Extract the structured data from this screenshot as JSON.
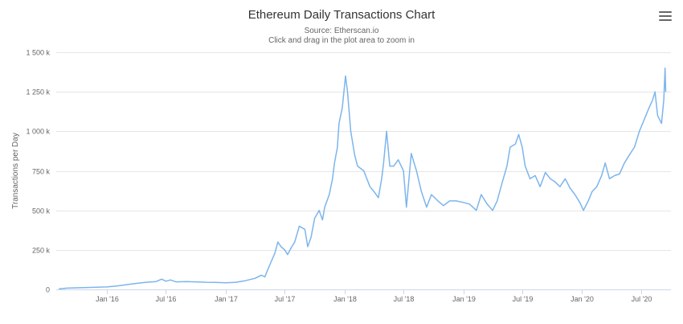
{
  "title": "Ethereum Daily Transactions Chart",
  "subtitle_source": "Source: Etherscan.io",
  "subtitle_hint": "Click and drag in the plot area to zoom in",
  "menu_icon": "hamburger-menu-icon",
  "colors": {
    "series": "#7cb5ec",
    "grid": "#e6e6e6",
    "axis_text": "#666666"
  },
  "chart_data": {
    "type": "line",
    "title": "Ethereum Daily Transactions Chart",
    "ylabel": "Transactions per Day",
    "xlabel": "",
    "ylim": [
      0,
      1500000
    ],
    "xlim": [
      "2015-07-30",
      "2020-09-30"
    ],
    "y_ticks": [
      {
        "value": 0,
        "label": "0"
      },
      {
        "value": 250000,
        "label": "250 k"
      },
      {
        "value": 500000,
        "label": "500 k"
      },
      {
        "value": 750000,
        "label": "750 k"
      },
      {
        "value": 1000000,
        "label": "1 000 k"
      },
      {
        "value": 1250000,
        "label": "1 250 k"
      },
      {
        "value": 1500000,
        "label": "1 500 k"
      }
    ],
    "x_ticks": [
      {
        "date": "2016-01-01",
        "label": "Jan '16"
      },
      {
        "date": "2016-07-01",
        "label": "Jul '16"
      },
      {
        "date": "2017-01-01",
        "label": "Jan '17"
      },
      {
        "date": "2017-07-01",
        "label": "Jul '17"
      },
      {
        "date": "2018-01-01",
        "label": "Jan '18"
      },
      {
        "date": "2018-07-01",
        "label": "Jul '18"
      },
      {
        "date": "2019-01-01",
        "label": "Jan '19"
      },
      {
        "date": "2019-07-01",
        "label": "Jul '19"
      },
      {
        "date": "2020-01-01",
        "label": "Jan '20"
      },
      {
        "date": "2020-07-01",
        "label": "Jul '20"
      }
    ],
    "grid": true,
    "legend": false,
    "series": [
      {
        "points": [
          [
            "2015-08-07",
            3000
          ],
          [
            "2015-09-01",
            8000
          ],
          [
            "2015-10-01",
            10000
          ],
          [
            "2015-11-01",
            12000
          ],
          [
            "2015-12-01",
            14000
          ],
          [
            "2016-01-01",
            16000
          ],
          [
            "2016-02-01",
            22000
          ],
          [
            "2016-03-01",
            30000
          ],
          [
            "2016-04-01",
            38000
          ],
          [
            "2016-05-01",
            45000
          ],
          [
            "2016-06-01",
            50000
          ],
          [
            "2016-06-18",
            65000
          ],
          [
            "2016-07-01",
            52000
          ],
          [
            "2016-07-15",
            60000
          ],
          [
            "2016-08-01",
            48000
          ],
          [
            "2016-09-01",
            50000
          ],
          [
            "2016-10-01",
            48000
          ],
          [
            "2016-11-01",
            45000
          ],
          [
            "2016-12-01",
            44000
          ],
          [
            "2017-01-01",
            42000
          ],
          [
            "2017-02-01",
            45000
          ],
          [
            "2017-03-01",
            55000
          ],
          [
            "2017-04-01",
            70000
          ],
          [
            "2017-04-20",
            90000
          ],
          [
            "2017-05-01",
            80000
          ],
          [
            "2017-05-15",
            150000
          ],
          [
            "2017-06-01",
            230000
          ],
          [
            "2017-06-10",
            300000
          ],
          [
            "2017-06-20",
            270000
          ],
          [
            "2017-07-01",
            250000
          ],
          [
            "2017-07-10",
            220000
          ],
          [
            "2017-07-20",
            260000
          ],
          [
            "2017-08-01",
            300000
          ],
          [
            "2017-08-15",
            400000
          ],
          [
            "2017-09-01",
            380000
          ],
          [
            "2017-09-10",
            270000
          ],
          [
            "2017-09-20",
            330000
          ],
          [
            "2017-10-01",
            450000
          ],
          [
            "2017-10-15",
            500000
          ],
          [
            "2017-10-25",
            440000
          ],
          [
            "2017-11-01",
            520000
          ],
          [
            "2017-11-15",
            600000
          ],
          [
            "2017-11-25",
            700000
          ],
          [
            "2017-12-01",
            800000
          ],
          [
            "2017-12-10",
            900000
          ],
          [
            "2017-12-15",
            1050000
          ],
          [
            "2017-12-25",
            1150000
          ],
          [
            "2018-01-04",
            1350000
          ],
          [
            "2018-01-10",
            1250000
          ],
          [
            "2018-01-20",
            1000000
          ],
          [
            "2018-02-01",
            850000
          ],
          [
            "2018-02-10",
            780000
          ],
          [
            "2018-03-01",
            750000
          ],
          [
            "2018-03-20",
            650000
          ],
          [
            "2018-04-01",
            620000
          ],
          [
            "2018-04-15",
            580000
          ],
          [
            "2018-04-25",
            700000
          ],
          [
            "2018-05-01",
            800000
          ],
          [
            "2018-05-10",
            1000000
          ],
          [
            "2018-05-20",
            780000
          ],
          [
            "2018-06-01",
            780000
          ],
          [
            "2018-06-15",
            820000
          ],
          [
            "2018-07-01",
            750000
          ],
          [
            "2018-07-10",
            520000
          ],
          [
            "2018-07-25",
            860000
          ],
          [
            "2018-08-10",
            750000
          ],
          [
            "2018-08-25",
            620000
          ],
          [
            "2018-09-10",
            520000
          ],
          [
            "2018-09-25",
            600000
          ],
          [
            "2018-10-15",
            560000
          ],
          [
            "2018-11-01",
            530000
          ],
          [
            "2018-11-20",
            560000
          ],
          [
            "2018-12-10",
            560000
          ],
          [
            "2019-01-01",
            550000
          ],
          [
            "2019-01-20",
            540000
          ],
          [
            "2019-02-10",
            500000
          ],
          [
            "2019-02-25",
            600000
          ],
          [
            "2019-03-15",
            540000
          ],
          [
            "2019-04-01",
            500000
          ],
          [
            "2019-04-15",
            560000
          ],
          [
            "2019-05-01",
            680000
          ],
          [
            "2019-05-15",
            780000
          ],
          [
            "2019-05-25",
            900000
          ],
          [
            "2019-06-10",
            920000
          ],
          [
            "2019-06-20",
            980000
          ],
          [
            "2019-07-01",
            900000
          ],
          [
            "2019-07-10",
            780000
          ],
          [
            "2019-07-25",
            700000
          ],
          [
            "2019-08-10",
            720000
          ],
          [
            "2019-08-25",
            650000
          ],
          [
            "2019-09-10",
            740000
          ],
          [
            "2019-09-25",
            700000
          ],
          [
            "2019-10-10",
            680000
          ],
          [
            "2019-10-25",
            650000
          ],
          [
            "2019-11-10",
            700000
          ],
          [
            "2019-11-25",
            640000
          ],
          [
            "2019-12-10",
            600000
          ],
          [
            "2019-12-25",
            550000
          ],
          [
            "2020-01-05",
            500000
          ],
          [
            "2020-01-20",
            560000
          ],
          [
            "2020-02-01",
            620000
          ],
          [
            "2020-02-15",
            650000
          ],
          [
            "2020-03-01",
            720000
          ],
          [
            "2020-03-12",
            800000
          ],
          [
            "2020-03-25",
            700000
          ],
          [
            "2020-04-10",
            720000
          ],
          [
            "2020-04-25",
            730000
          ],
          [
            "2020-05-10",
            800000
          ],
          [
            "2020-05-25",
            850000
          ],
          [
            "2020-06-10",
            900000
          ],
          [
            "2020-06-25",
            1000000
          ],
          [
            "2020-07-05",
            1050000
          ],
          [
            "2020-07-15",
            1100000
          ],
          [
            "2020-07-25",
            1150000
          ],
          [
            "2020-08-05",
            1200000
          ],
          [
            "2020-08-12",
            1250000
          ],
          [
            "2020-08-20",
            1100000
          ],
          [
            "2020-09-01",
            1050000
          ],
          [
            "2020-09-08",
            1200000
          ],
          [
            "2020-09-12",
            1400000
          ],
          [
            "2020-09-14",
            1250000
          ]
        ]
      }
    ]
  }
}
